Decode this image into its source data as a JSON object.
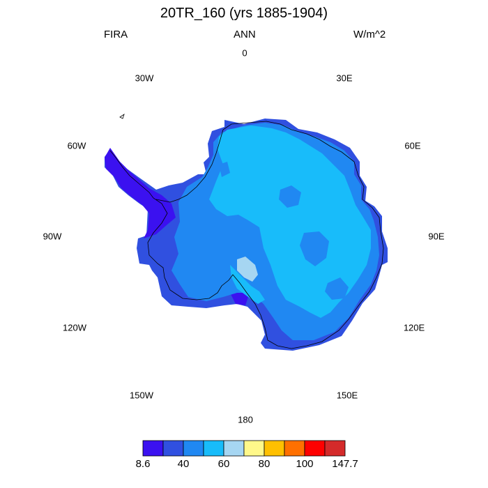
{
  "title": "20TR_160 (yrs 1885-1904)",
  "variable": "FIRA",
  "season": "ANN",
  "units": "W/m^2",
  "longitude_labels": {
    "n": "0",
    "ne1": "30E",
    "ne2": "60E",
    "e": "90E",
    "se1": "120E",
    "se2": "150E",
    "s": "180",
    "sw2": "150W",
    "sw1": "120W",
    "w": "90W",
    "nw2": "60W",
    "nw1": "30W"
  },
  "colorbar": {
    "colors": [
      "#3b11f0",
      "#3050e0",
      "#2088f2",
      "#18bcfa",
      "#a6d6f2",
      "#fff88a",
      "#ffc000",
      "#ff7000",
      "#fe0000",
      "#d42a2a"
    ],
    "labels": [
      "8.6",
      "40",
      "60",
      "80",
      "100",
      "147.7"
    ],
    "label_edges": [
      0,
      2,
      4,
      6,
      8,
      10
    ]
  },
  "map_colors": {
    "coast": "#000000"
  }
}
